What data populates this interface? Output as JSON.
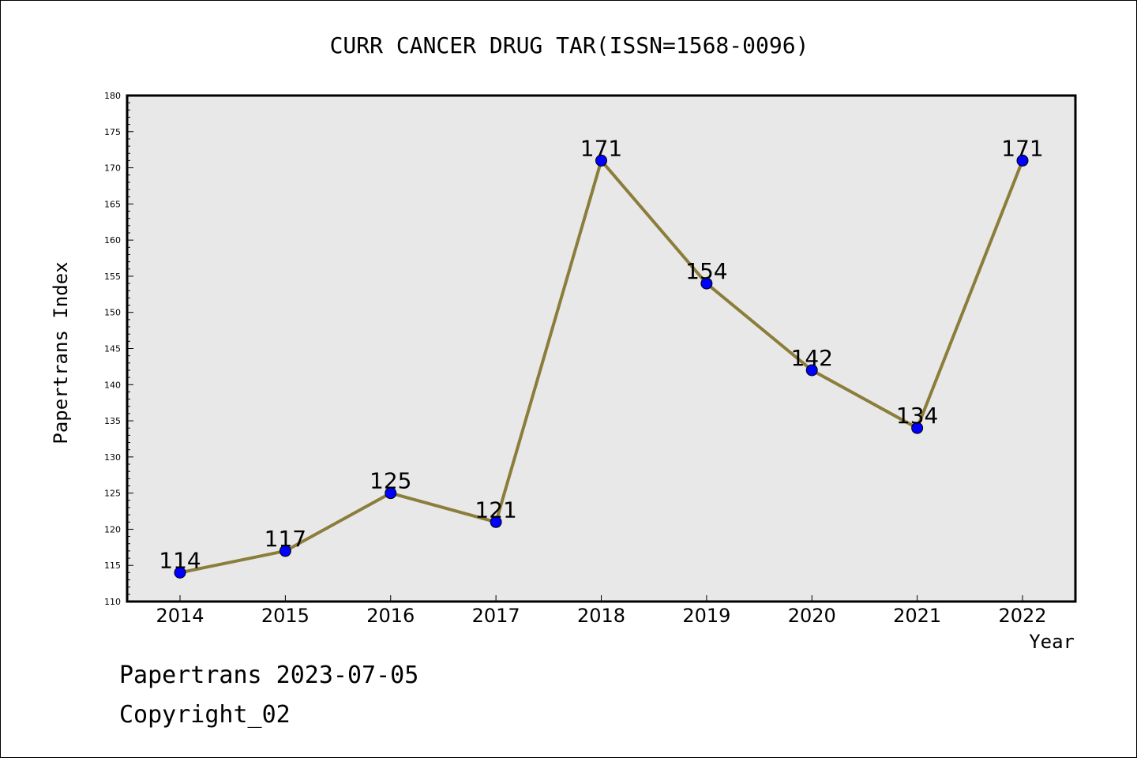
{
  "chart_data": {
    "type": "line",
    "title": "CURR CANCER DRUG TAR(ISSN=1568-0096)",
    "xlabel": "Year",
    "ylabel": "Papertrans Index",
    "categories": [
      "2014",
      "2015",
      "2016",
      "2017",
      "2018",
      "2019",
      "2020",
      "2021",
      "2022"
    ],
    "series": [
      {
        "values": [
          114,
          117,
          125,
          121,
          171,
          154,
          142,
          134,
          171
        ]
      }
    ],
    "ylim": [
      110,
      180
    ],
    "yticks": [
      110,
      115,
      120,
      125,
      130,
      135,
      140,
      145,
      150,
      155,
      160,
      165,
      170,
      175,
      180
    ],
    "grid": false,
    "colors": {
      "line": "#8b7d3a",
      "marker": "#0000ff",
      "plot_bg": "#e8e8e8"
    }
  },
  "footer": {
    "line1": "Papertrans 2023-07-05",
    "line2": "Copyright_02"
  }
}
